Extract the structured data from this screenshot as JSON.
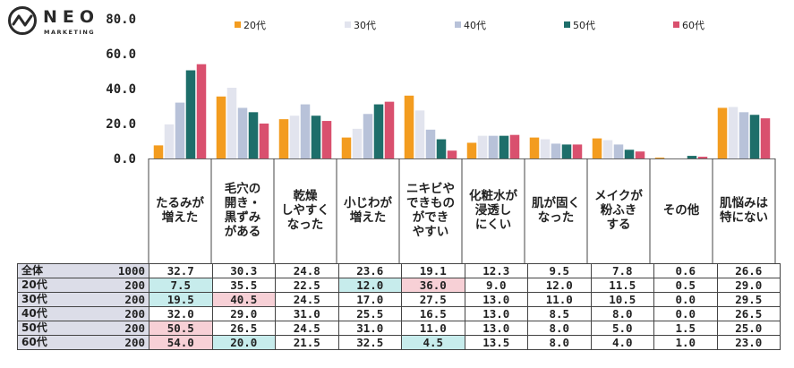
{
  "logo": {
    "brand": "NEO",
    "sub": "MARKETING"
  },
  "chart_data": {
    "type": "bar",
    "ylim": [
      0,
      80
    ],
    "yticks": [
      "0.0",
      "20.0",
      "40.0",
      "60.0",
      "80.0"
    ],
    "categories": [
      "たるみが\n増えた",
      "毛穴の\n開き・\n黒ずみ\nがある",
      "乾燥\nしやすく\nなった",
      "小じわが\n増えた",
      "ニキビや\nできもの\nができ\nやすい",
      "化粧水が\n浸透し\nにくい",
      "肌が固く\nなった",
      "メイクが\n粉ふき\nする",
      "その他",
      "肌悩みは\n特にない"
    ],
    "series": [
      {
        "name": "20代",
        "color": "#f39c1f",
        "values": [
          7.5,
          35.5,
          22.5,
          12.0,
          36.0,
          9.0,
          12.0,
          11.5,
          0.5,
          29.0
        ]
      },
      {
        "name": "30代",
        "color": "#e2e4ee",
        "values": [
          19.5,
          40.5,
          24.5,
          17.0,
          27.5,
          13.0,
          11.0,
          10.5,
          0.0,
          29.5
        ]
      },
      {
        "name": "40代",
        "color": "#b8c2d9",
        "values": [
          32.0,
          29.0,
          31.0,
          25.5,
          16.5,
          13.0,
          8.5,
          8.0,
          0.0,
          26.5
        ]
      },
      {
        "name": "50代",
        "color": "#1e6e6a",
        "values": [
          50.5,
          26.5,
          24.5,
          31.0,
          11.0,
          13.0,
          8.0,
          5.0,
          1.5,
          25.0
        ]
      },
      {
        "name": "60代",
        "color": "#d9506e",
        "values": [
          54.0,
          20.0,
          21.5,
          32.5,
          4.5,
          13.5,
          8.0,
          4.0,
          1.0,
          23.0
        ]
      }
    ]
  },
  "table": {
    "rows": [
      {
        "label": "全体",
        "n": "1000",
        "values": [
          "32.7",
          "30.3",
          "24.8",
          "23.6",
          "19.1",
          "12.3",
          "9.5",
          "7.8",
          "0.6",
          "26.6"
        ],
        "hl": [
          "",
          "",
          "",
          "",
          "",
          "",
          "",
          "",
          "",
          ""
        ]
      },
      {
        "label": "20代",
        "n": "200",
        "values": [
          "7.5",
          "35.5",
          "22.5",
          "12.0",
          "36.0",
          "9.0",
          "12.0",
          "11.5",
          "0.5",
          "29.0"
        ],
        "hl": [
          "lo",
          "",
          "",
          "lo",
          "hi",
          "",
          "",
          "",
          "",
          ""
        ]
      },
      {
        "label": "30代",
        "n": "200",
        "values": [
          "19.5",
          "40.5",
          "24.5",
          "17.0",
          "27.5",
          "13.0",
          "11.0",
          "10.5",
          "0.0",
          "29.5"
        ],
        "hl": [
          "lo",
          "hi",
          "",
          "",
          "",
          "",
          "",
          "",
          "",
          ""
        ]
      },
      {
        "label": "40代",
        "n": "200",
        "values": [
          "32.0",
          "29.0",
          "31.0",
          "25.5",
          "16.5",
          "13.0",
          "8.5",
          "8.0",
          "0.0",
          "26.5"
        ],
        "hl": [
          "",
          "",
          "",
          "",
          "",
          "",
          "",
          "",
          "",
          ""
        ]
      },
      {
        "label": "50代",
        "n": "200",
        "values": [
          "50.5",
          "26.5",
          "24.5",
          "31.0",
          "11.0",
          "13.0",
          "8.0",
          "5.0",
          "1.5",
          "25.0"
        ],
        "hl": [
          "hi",
          "",
          "",
          "",
          "",
          "",
          "",
          "",
          "",
          ""
        ]
      },
      {
        "label": "60代",
        "n": "200",
        "values": [
          "54.0",
          "20.0",
          "21.5",
          "32.5",
          "4.5",
          "13.5",
          "8.0",
          "4.0",
          "1.0",
          "23.0"
        ],
        "hl": [
          "hi",
          "lo",
          "",
          "",
          "lo",
          "",
          "",
          "",
          "",
          ""
        ]
      }
    ]
  }
}
